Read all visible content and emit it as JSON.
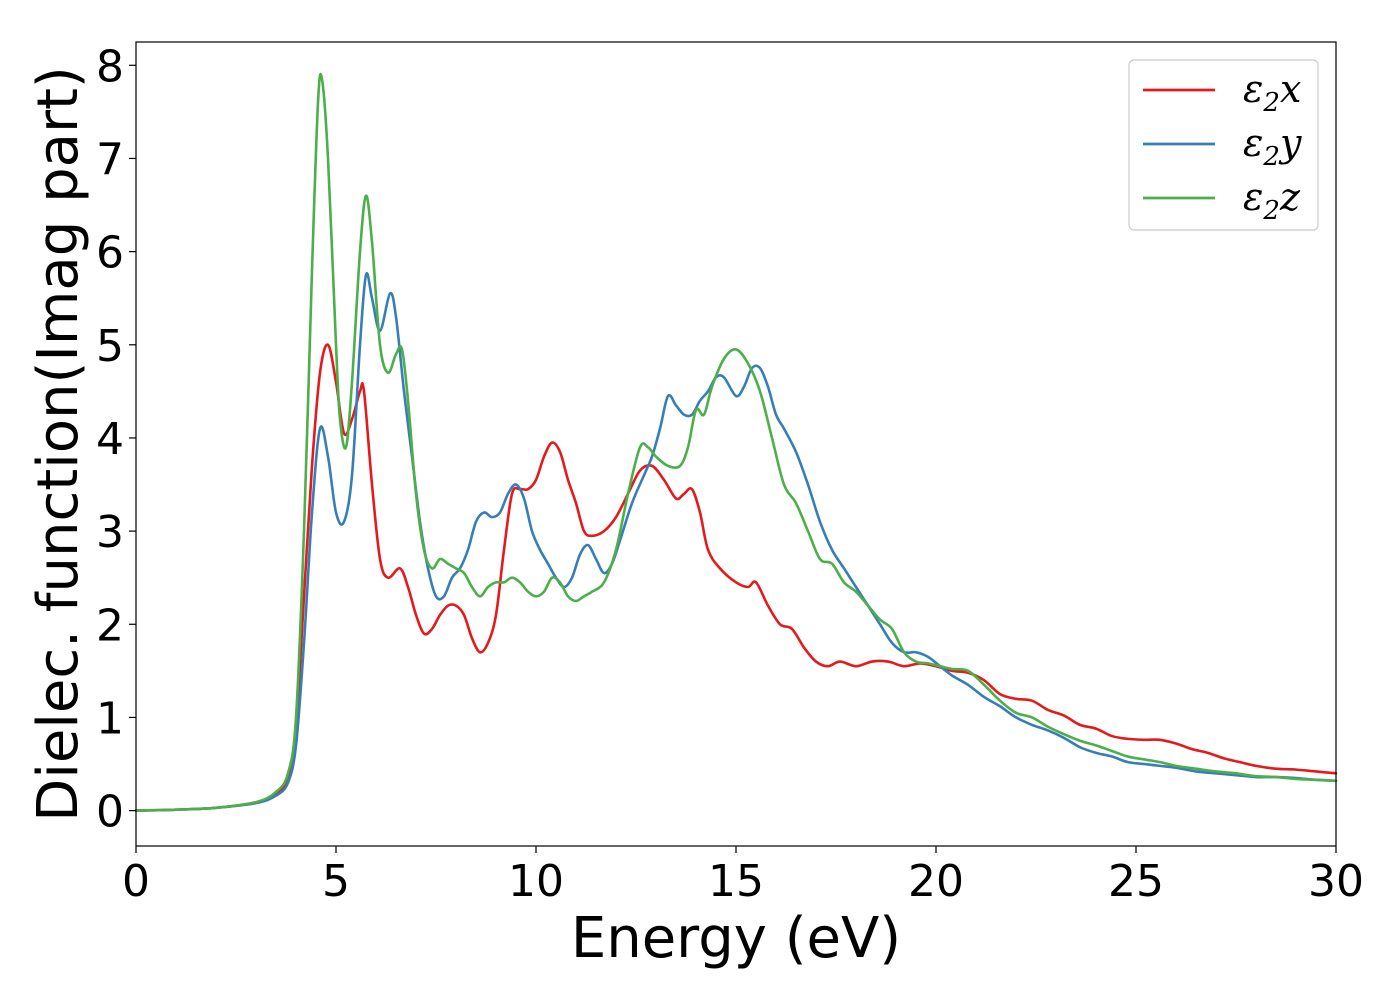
{
  "chart_data": {
    "type": "line",
    "xlabel": "Energy (eV)",
    "ylabel": "Dielec. function(Imag part)",
    "xlim": [
      0,
      30
    ],
    "ylim": [
      -0.38,
      8.25
    ],
    "xticks": [
      0,
      5,
      10,
      15,
      20,
      25,
      30
    ],
    "yticks": [
      0,
      1,
      2,
      3,
      4,
      5,
      6,
      7,
      8
    ],
    "grid": false,
    "legend_position": "top-right",
    "series": [
      {
        "name": "ε2x",
        "symbol": "ε",
        "subscript": "2",
        "axis": "x",
        "color": "#e41a1c",
        "points": [
          [
            0,
            0
          ],
          [
            1,
            0.01
          ],
          [
            2,
            0.03
          ],
          [
            3,
            0.09
          ],
          [
            3.5,
            0.18
          ],
          [
            3.8,
            0.35
          ],
          [
            4.0,
            0.9
          ],
          [
            4.2,
            2.3
          ],
          [
            4.4,
            3.7
          ],
          [
            4.6,
            4.7
          ],
          [
            4.8,
            5.0
          ],
          [
            5.0,
            4.6
          ],
          [
            5.2,
            4.05
          ],
          [
            5.4,
            4.2
          ],
          [
            5.6,
            4.5
          ],
          [
            5.7,
            4.5
          ],
          [
            5.9,
            3.5
          ],
          [
            6.1,
            2.7
          ],
          [
            6.3,
            2.5
          ],
          [
            6.6,
            2.6
          ],
          [
            6.8,
            2.4
          ],
          [
            7.0,
            2.1
          ],
          [
            7.2,
            1.9
          ],
          [
            7.4,
            1.95
          ],
          [
            7.6,
            2.1
          ],
          [
            7.8,
            2.2
          ],
          [
            8.0,
            2.2
          ],
          [
            8.2,
            2.1
          ],
          [
            8.4,
            1.85
          ],
          [
            8.6,
            1.7
          ],
          [
            8.8,
            1.8
          ],
          [
            9.0,
            2.1
          ],
          [
            9.2,
            2.8
          ],
          [
            9.4,
            3.4
          ],
          [
            9.6,
            3.45
          ],
          [
            9.8,
            3.45
          ],
          [
            10.0,
            3.55
          ],
          [
            10.2,
            3.8
          ],
          [
            10.4,
            3.95
          ],
          [
            10.6,
            3.85
          ],
          [
            10.8,
            3.55
          ],
          [
            11.0,
            3.3
          ],
          [
            11.2,
            3.0
          ],
          [
            11.4,
            2.95
          ],
          [
            11.7,
            3.0
          ],
          [
            12.0,
            3.15
          ],
          [
            12.3,
            3.4
          ],
          [
            12.6,
            3.65
          ],
          [
            12.9,
            3.7
          ],
          [
            13.2,
            3.55
          ],
          [
            13.5,
            3.35
          ],
          [
            13.7,
            3.4
          ],
          [
            13.9,
            3.45
          ],
          [
            14.1,
            3.2
          ],
          [
            14.3,
            2.8
          ],
          [
            14.6,
            2.6
          ],
          [
            15.0,
            2.45
          ],
          [
            15.3,
            2.4
          ],
          [
            15.5,
            2.45
          ],
          [
            15.8,
            2.2
          ],
          [
            16.1,
            2.0
          ],
          [
            16.4,
            1.95
          ],
          [
            16.7,
            1.75
          ],
          [
            17.0,
            1.6
          ],
          [
            17.3,
            1.55
          ],
          [
            17.6,
            1.6
          ],
          [
            18.0,
            1.55
          ],
          [
            18.4,
            1.6
          ],
          [
            18.8,
            1.6
          ],
          [
            19.2,
            1.55
          ],
          [
            19.6,
            1.58
          ],
          [
            20.0,
            1.55
          ],
          [
            20.4,
            1.5
          ],
          [
            20.8,
            1.48
          ],
          [
            21.2,
            1.4
          ],
          [
            21.6,
            1.25
          ],
          [
            22.0,
            1.2
          ],
          [
            22.4,
            1.18
          ],
          [
            22.8,
            1.08
          ],
          [
            23.2,
            1.02
          ],
          [
            23.6,
            0.92
          ],
          [
            24.0,
            0.88
          ],
          [
            24.4,
            0.8
          ],
          [
            24.8,
            0.77
          ],
          [
            25.2,
            0.76
          ],
          [
            25.6,
            0.76
          ],
          [
            26.0,
            0.72
          ],
          [
            26.4,
            0.66
          ],
          [
            26.8,
            0.62
          ],
          [
            27.2,
            0.56
          ],
          [
            27.6,
            0.52
          ],
          [
            28.0,
            0.48
          ],
          [
            28.5,
            0.45
          ],
          [
            29.0,
            0.44
          ],
          [
            29.5,
            0.42
          ],
          [
            30.0,
            0.4
          ]
        ]
      },
      {
        "name": "ε2y",
        "symbol": "ε",
        "subscript": "2",
        "axis": "y",
        "color": "#377eb8",
        "points": [
          [
            0,
            0
          ],
          [
            1,
            0.01
          ],
          [
            2,
            0.03
          ],
          [
            3,
            0.08
          ],
          [
            3.5,
            0.16
          ],
          [
            3.8,
            0.3
          ],
          [
            4.0,
            0.7
          ],
          [
            4.2,
            1.8
          ],
          [
            4.4,
            3.2
          ],
          [
            4.6,
            4.1
          ],
          [
            4.8,
            3.8
          ],
          [
            5.0,
            3.2
          ],
          [
            5.2,
            3.1
          ],
          [
            5.4,
            3.6
          ],
          [
            5.6,
            5.0
          ],
          [
            5.75,
            5.75
          ],
          [
            5.9,
            5.5
          ],
          [
            6.1,
            5.15
          ],
          [
            6.35,
            5.55
          ],
          [
            6.5,
            5.3
          ],
          [
            6.7,
            4.5
          ],
          [
            6.9,
            3.8
          ],
          [
            7.1,
            3.1
          ],
          [
            7.3,
            2.6
          ],
          [
            7.5,
            2.3
          ],
          [
            7.7,
            2.3
          ],
          [
            7.9,
            2.5
          ],
          [
            8.1,
            2.6
          ],
          [
            8.3,
            2.8
          ],
          [
            8.5,
            3.1
          ],
          [
            8.7,
            3.2
          ],
          [
            8.9,
            3.15
          ],
          [
            9.1,
            3.2
          ],
          [
            9.3,
            3.4
          ],
          [
            9.5,
            3.5
          ],
          [
            9.7,
            3.35
          ],
          [
            9.9,
            3.0
          ],
          [
            10.1,
            2.8
          ],
          [
            10.3,
            2.65
          ],
          [
            10.5,
            2.5
          ],
          [
            10.7,
            2.4
          ],
          [
            10.9,
            2.5
          ],
          [
            11.1,
            2.75
          ],
          [
            11.3,
            2.85
          ],
          [
            11.5,
            2.7
          ],
          [
            11.7,
            2.55
          ],
          [
            11.9,
            2.65
          ],
          [
            12.1,
            2.9
          ],
          [
            12.4,
            3.3
          ],
          [
            12.7,
            3.6
          ],
          [
            12.9,
            3.8
          ],
          [
            13.1,
            4.1
          ],
          [
            13.3,
            4.45
          ],
          [
            13.5,
            4.35
          ],
          [
            13.7,
            4.25
          ],
          [
            13.9,
            4.25
          ],
          [
            14.1,
            4.4
          ],
          [
            14.3,
            4.5
          ],
          [
            14.5,
            4.65
          ],
          [
            14.7,
            4.65
          ],
          [
            15.0,
            4.45
          ],
          [
            15.2,
            4.55
          ],
          [
            15.4,
            4.75
          ],
          [
            15.6,
            4.75
          ],
          [
            15.8,
            4.55
          ],
          [
            16.0,
            4.25
          ],
          [
            16.2,
            4.1
          ],
          [
            16.5,
            3.85
          ],
          [
            16.8,
            3.5
          ],
          [
            17.1,
            3.1
          ],
          [
            17.4,
            2.8
          ],
          [
            17.7,
            2.6
          ],
          [
            18.0,
            2.4
          ],
          [
            18.3,
            2.2
          ],
          [
            18.6,
            2.0
          ],
          [
            18.9,
            1.8
          ],
          [
            19.2,
            1.7
          ],
          [
            19.5,
            1.7
          ],
          [
            19.8,
            1.65
          ],
          [
            20.1,
            1.55
          ],
          [
            20.4,
            1.45
          ],
          [
            20.8,
            1.35
          ],
          [
            21.2,
            1.22
          ],
          [
            21.6,
            1.12
          ],
          [
            22.0,
            1.0
          ],
          [
            22.4,
            0.92
          ],
          [
            22.8,
            0.86
          ],
          [
            23.2,
            0.78
          ],
          [
            23.6,
            0.68
          ],
          [
            24.0,
            0.62
          ],
          [
            24.4,
            0.58
          ],
          [
            24.8,
            0.52
          ],
          [
            25.2,
            0.5
          ],
          [
            25.6,
            0.48
          ],
          [
            26.0,
            0.46
          ],
          [
            26.5,
            0.42
          ],
          [
            27.0,
            0.4
          ],
          [
            27.5,
            0.38
          ],
          [
            28.0,
            0.36
          ],
          [
            28.5,
            0.36
          ],
          [
            29.0,
            0.35
          ],
          [
            29.5,
            0.33
          ],
          [
            30.0,
            0.32
          ]
        ]
      },
      {
        "name": "ε2z",
        "symbol": "ε",
        "subscript": "2",
        "axis": "z",
        "color": "#4daf4a",
        "points": [
          [
            0,
            0
          ],
          [
            1,
            0.01
          ],
          [
            2,
            0.03
          ],
          [
            3,
            0.09
          ],
          [
            3.5,
            0.2
          ],
          [
            3.8,
            0.4
          ],
          [
            4.0,
            1.0
          ],
          [
            4.2,
            3.0
          ],
          [
            4.4,
            5.8
          ],
          [
            4.55,
            7.6
          ],
          [
            4.65,
            7.85
          ],
          [
            4.8,
            7.0
          ],
          [
            5.0,
            5.0
          ],
          [
            5.1,
            4.2
          ],
          [
            5.25,
            3.9
          ],
          [
            5.4,
            4.6
          ],
          [
            5.6,
            6.0
          ],
          [
            5.75,
            6.6
          ],
          [
            5.9,
            6.1
          ],
          [
            6.1,
            5.0
          ],
          [
            6.3,
            4.7
          ],
          [
            6.5,
            4.9
          ],
          [
            6.65,
            4.95
          ],
          [
            6.8,
            4.4
          ],
          [
            7.0,
            3.4
          ],
          [
            7.2,
            2.8
          ],
          [
            7.4,
            2.6
          ],
          [
            7.6,
            2.7
          ],
          [
            7.8,
            2.65
          ],
          [
            8.0,
            2.6
          ],
          [
            8.2,
            2.55
          ],
          [
            8.4,
            2.4
          ],
          [
            8.6,
            2.3
          ],
          [
            8.8,
            2.4
          ],
          [
            9.0,
            2.45
          ],
          [
            9.2,
            2.45
          ],
          [
            9.4,
            2.5
          ],
          [
            9.6,
            2.45
          ],
          [
            9.8,
            2.35
          ],
          [
            10.0,
            2.3
          ],
          [
            10.2,
            2.35
          ],
          [
            10.4,
            2.5
          ],
          [
            10.6,
            2.45
          ],
          [
            10.8,
            2.3
          ],
          [
            11.0,
            2.25
          ],
          [
            11.2,
            2.3
          ],
          [
            11.4,
            2.35
          ],
          [
            11.7,
            2.45
          ],
          [
            12.0,
            2.8
          ],
          [
            12.3,
            3.4
          ],
          [
            12.6,
            3.9
          ],
          [
            12.8,
            3.9
          ],
          [
            13.0,
            3.8
          ],
          [
            13.3,
            3.7
          ],
          [
            13.6,
            3.7
          ],
          [
            13.8,
            3.9
          ],
          [
            14.0,
            4.3
          ],
          [
            14.2,
            4.25
          ],
          [
            14.4,
            4.55
          ],
          [
            14.7,
            4.85
          ],
          [
            15.0,
            4.95
          ],
          [
            15.3,
            4.8
          ],
          [
            15.6,
            4.5
          ],
          [
            15.9,
            4.0
          ],
          [
            16.2,
            3.5
          ],
          [
            16.5,
            3.3
          ],
          [
            16.8,
            3.0
          ],
          [
            17.1,
            2.7
          ],
          [
            17.4,
            2.65
          ],
          [
            17.7,
            2.45
          ],
          [
            18.0,
            2.35
          ],
          [
            18.3,
            2.2
          ],
          [
            18.6,
            2.05
          ],
          [
            18.9,
            1.95
          ],
          [
            19.2,
            1.7
          ],
          [
            19.5,
            1.6
          ],
          [
            19.8,
            1.58
          ],
          [
            20.1,
            1.55
          ],
          [
            20.4,
            1.52
          ],
          [
            20.8,
            1.5
          ],
          [
            21.2,
            1.35
          ],
          [
            21.6,
            1.18
          ],
          [
            22.0,
            1.05
          ],
          [
            22.4,
            1.0
          ],
          [
            22.8,
            0.9
          ],
          [
            23.2,
            0.82
          ],
          [
            23.6,
            0.75
          ],
          [
            24.0,
            0.7
          ],
          [
            24.4,
            0.64
          ],
          [
            24.8,
            0.58
          ],
          [
            25.2,
            0.55
          ],
          [
            25.6,
            0.52
          ],
          [
            26.0,
            0.48
          ],
          [
            26.5,
            0.45
          ],
          [
            27.0,
            0.42
          ],
          [
            27.5,
            0.4
          ],
          [
            28.0,
            0.37
          ],
          [
            28.5,
            0.36
          ],
          [
            29.0,
            0.34
          ],
          [
            29.5,
            0.33
          ],
          [
            30.0,
            0.32
          ]
        ]
      }
    ]
  }
}
